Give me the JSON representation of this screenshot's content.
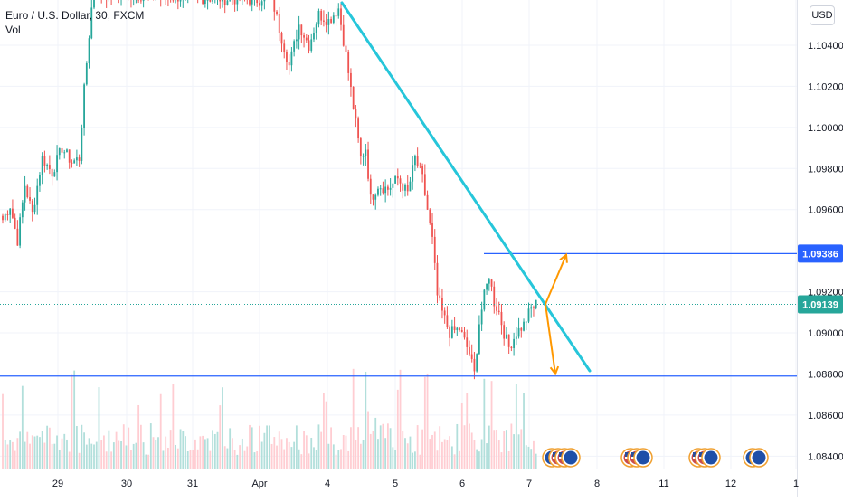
{
  "legend": {
    "symbol": "Euro / U.S. Dollar, 30, FXCM",
    "volume_label": "Vol"
  },
  "currency_button": "USD",
  "chart_data": {
    "type": "candlestick",
    "y_axis": {
      "ticks": [
        "1.10400",
        "1.10200",
        "1.10000",
        "1.09800",
        "1.09600",
        "1.09200",
        "1.09000",
        "1.08800",
        "1.08600",
        "1.08400"
      ],
      "tick_values": [
        1.104,
        1.102,
        1.1,
        1.098,
        1.096,
        1.092,
        1.09,
        1.088,
        1.086,
        1.084
      ],
      "ylim": [
        1.0834,
        1.1062
      ]
    },
    "x_axis": {
      "ticks": [
        "29",
        "30",
        "31",
        "Apr",
        "4",
        "5",
        "6",
        "7",
        "8",
        "11",
        "12",
        "1"
      ]
    },
    "price_labels": [
      {
        "name": "resistance",
        "text": "1.09386",
        "value": 1.09386,
        "color": "#2962ff"
      },
      {
        "name": "last-price",
        "text": "1.09139",
        "value": 1.09139,
        "color": "#26a69a"
      }
    ],
    "horizontal_lines": [
      {
        "name": "resistance-line",
        "value": 1.09386,
        "color": "#2962ff"
      },
      {
        "name": "support-line",
        "value": 1.0879,
        "color": "#2962ff"
      }
    ],
    "trendline": {
      "name": "descending-trendline",
      "color": "#26c6da",
      "from": {
        "bar": 137,
        "value": 1.1062
      },
      "to": {
        "bar": 233,
        "value": 1.0883
      }
    },
    "projection_arrows": [
      {
        "name": "up-arrow",
        "from": 1.0914,
        "to": 1.0938,
        "color": "#ff9800"
      },
      {
        "name": "down-arrow",
        "from": 1.0914,
        "to": 1.088,
        "color": "#ff9800"
      }
    ],
    "series": [
      {
        "name": "EURUSD",
        "anchors": [
          [
            0,
            1.0955
          ],
          [
            3,
            1.0962
          ],
          [
            6,
            1.0945
          ],
          [
            9,
            1.0972
          ],
          [
            12,
            1.0958
          ],
          [
            16,
            1.0985
          ],
          [
            20,
            1.0978
          ],
          [
            24,
            1.099
          ],
          [
            28,
            1.0983
          ],
          [
            31,
            1.0985
          ],
          [
            33,
            1.1018
          ],
          [
            35,
            1.1045
          ],
          [
            36,
            1.1058
          ],
          [
            38,
            1.107
          ],
          [
            40,
            1.1065
          ],
          [
            104,
            1.1062
          ],
          [
            108,
            1.1068
          ],
          [
            112,
            1.1048
          ],
          [
            116,
            1.103
          ],
          [
            120,
            1.105
          ],
          [
            124,
            1.104
          ],
          [
            128,
            1.1055
          ],
          [
            132,
            1.1052
          ],
          [
            136,
            1.1058
          ],
          [
            139,
            1.1035
          ],
          [
            142,
            1.101
          ],
          [
            145,
            1.0985
          ],
          [
            147,
            1.099
          ],
          [
            149,
            1.0965
          ],
          [
            152,
            1.0972
          ],
          [
            156,
            1.097
          ],
          [
            160,
            1.0975
          ],
          [
            164,
            1.0968
          ],
          [
            167,
            1.0985
          ],
          [
            170,
            1.0975
          ],
          [
            174,
            1.0945
          ],
          [
            176,
            1.0918
          ],
          [
            178,
            1.091
          ],
          [
            181,
            1.09
          ],
          [
            185,
            1.0902
          ],
          [
            189,
            1.089
          ],
          [
            191,
            1.088
          ],
          [
            193,
            1.0905
          ],
          [
            195,
            1.0918
          ],
          [
            197,
            1.0928
          ],
          [
            199,
            1.0915
          ],
          [
            201,
            1.091
          ],
          [
            203,
            1.09
          ],
          [
            205,
            1.0893
          ],
          [
            208,
            1.09
          ],
          [
            211,
            1.0904
          ],
          [
            214,
            1.0912
          ],
          [
            216,
            1.0914
          ]
        ]
      },
      {
        "name": "Volume",
        "levels": "relative"
      }
    ],
    "event_icons": [
      {
        "name": "economic-events-eu-us",
        "flags": [
          "EU",
          "US",
          "US",
          "EU"
        ]
      },
      {
        "name": "economic-events-us",
        "flags": [
          "US",
          "US",
          "EU"
        ]
      },
      {
        "name": "economic-events-us-2",
        "flags": [
          "US",
          "US",
          "EU"
        ]
      },
      {
        "name": "economic-events-eu",
        "flags": [
          "EU",
          "EU"
        ]
      }
    ],
    "colors": {
      "up": "#26a69a",
      "down": "#ef5350",
      "volume_up": "#b2dfdb",
      "volume_down": "#ffcdd2",
      "grid": "#f0f3fa",
      "axis_text": "#131722"
    }
  }
}
